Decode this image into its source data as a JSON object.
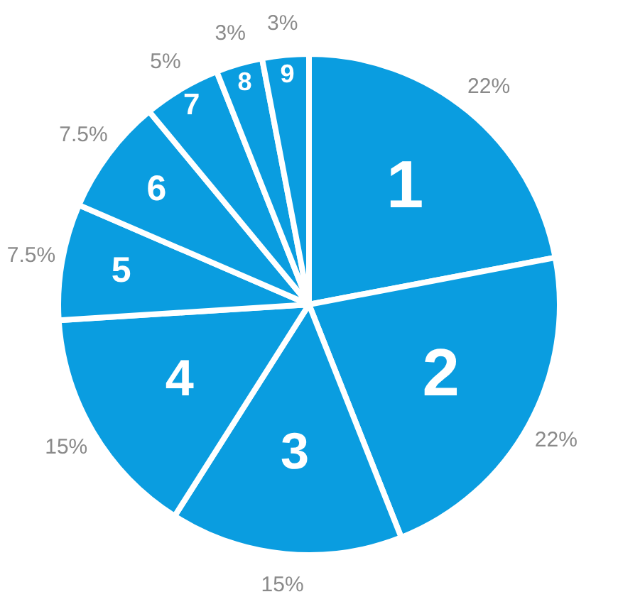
{
  "chart_data": {
    "type": "pie",
    "categories": [
      "1",
      "2",
      "3",
      "4",
      "5",
      "6",
      "7",
      "8",
      "9"
    ],
    "values": [
      22,
      22,
      15,
      15,
      7.5,
      7.5,
      5,
      3,
      3
    ],
    "colors": [
      "#0a9de0",
      "#0a9de0",
      "#0a9de0",
      "#0a9de0",
      "#0a9de0",
      "#0a9de0",
      "#0a9de0",
      "#0a9de0",
      "#0a9de0"
    ],
    "value_labels": [
      "22%",
      "22%",
      "15%",
      "15%",
      "7.5%",
      "7.5%",
      "5%",
      "3%",
      "3%"
    ],
    "legend": false
  }
}
